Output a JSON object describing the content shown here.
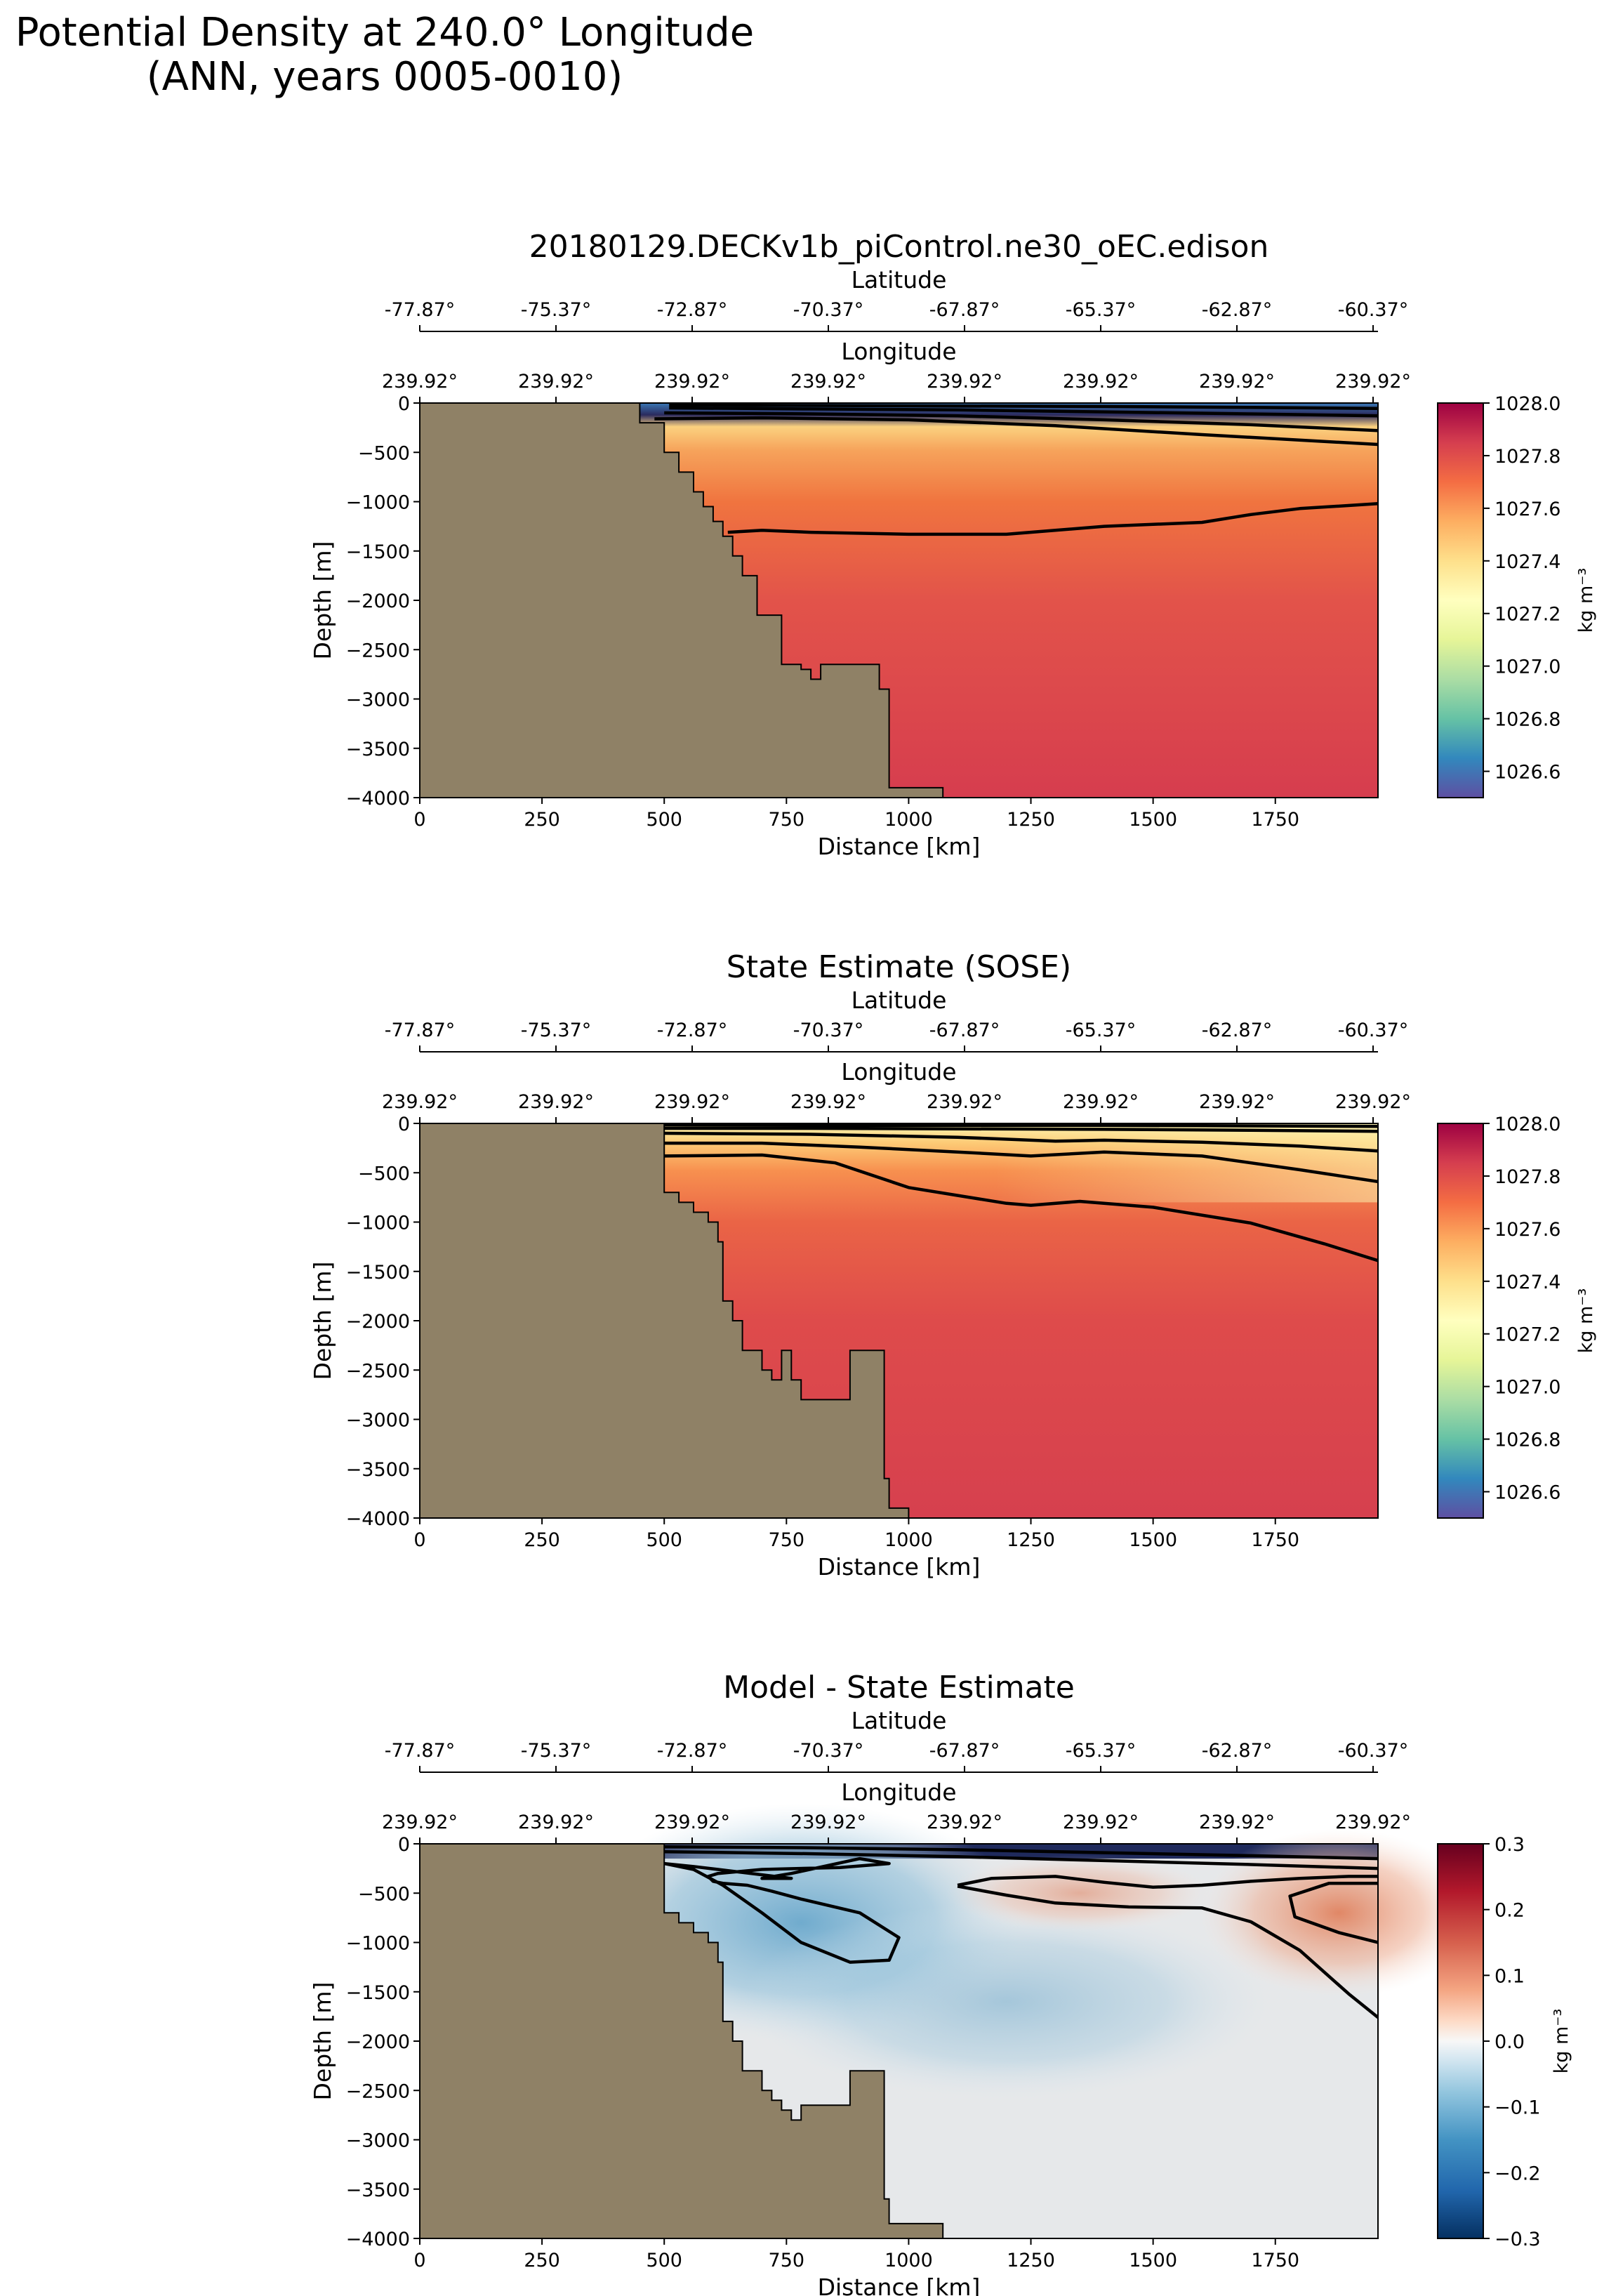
{
  "suptitle": [
    "Potential Density at 240.0° Longitude",
    "(ANN, years 0005-0010)"
  ],
  "colors": {
    "land": "#8f8166",
    "contour": "#000000",
    "density_colormap": "Spectral_r",
    "difference_colormap": "RdBu_r"
  },
  "chart_data": [
    {
      "type": "heatmap",
      "title": "20180129.DECKv1b_piControl.ne30_oEC.edison",
      "xlabel": "Distance [km]",
      "ylabel": "Depth [m]",
      "top_axis_1_label": "Latitude",
      "top_axis_1_ticks": [
        "-77.87°",
        "-75.37°",
        "-72.87°",
        "-70.37°",
        "-67.87°",
        "-65.37°",
        "-62.87°",
        "-60.37°"
      ],
      "top_axis_2_label": "Longitude",
      "top_axis_2_ticks": [
        "239.92°",
        "239.92°",
        "239.92°",
        "239.92°",
        "239.92°",
        "239.92°",
        "239.92°",
        "239.92°"
      ],
      "xlim": [
        0,
        1960
      ],
      "ylim": [
        -4000,
        0
      ],
      "xticks": [
        0,
        250,
        500,
        750,
        1000,
        1250,
        1500,
        1750
      ],
      "yticks": [
        0,
        -500,
        -1000,
        -1500,
        -2000,
        -2500,
        -3000,
        -3500,
        -4000
      ],
      "colorbar": {
        "label": "kg m⁻³",
        "range": [
          1026.5,
          1028.0
        ],
        "ticks": [
          "1028.0",
          "1027.8",
          "1027.6",
          "1027.4",
          "1027.2",
          "1027.0",
          "1026.8",
          "1026.6"
        ]
      },
      "bathymetry": {
        "distance_km": [
          450,
          450,
          500,
          500,
          530,
          530,
          560,
          560,
          580,
          580,
          600,
          600,
          620,
          620,
          640,
          640,
          660,
          660,
          690,
          690,
          740,
          740,
          780,
          780,
          800,
          800,
          820,
          820,
          830,
          830,
          940,
          940,
          960,
          960,
          1070,
          1070
        ],
        "depth_m": [
          0,
          -200,
          -200,
          -500,
          -500,
          -700,
          -700,
          -900,
          -900,
          -1050,
          -1050,
          -1200,
          -1200,
          -1350,
          -1350,
          -1550,
          -1550,
          -1750,
          -1750,
          -2150,
          -2150,
          -2650,
          -2650,
          -2700,
          -2700,
          -2800,
          -2800,
          -2650,
          -2650,
          -2650,
          -2650,
          -2900,
          -2900,
          -3900,
          -3900,
          -4000
        ]
      },
      "contours": [
        {
          "distance_km": [
            510,
            800,
            1100,
            1400,
            1700,
            1960
          ],
          "depth_m": [
            -20,
            -25,
            -30,
            -35,
            -45,
            -55
          ]
        },
        {
          "distance_km": [
            510,
            800,
            1100,
            1400,
            1700,
            1960
          ],
          "depth_m": [
            -50,
            -60,
            -70,
            -90,
            -110,
            -130
          ]
        },
        {
          "distance_km": [
            500,
            800,
            1100,
            1400,
            1700,
            1960
          ],
          "depth_m": [
            -100,
            -110,
            -130,
            -170,
            -220,
            -280
          ]
        },
        {
          "distance_km": [
            480,
            700,
            1000,
            1300,
            1600,
            1960
          ],
          "depth_m": [
            -160,
            -150,
            -170,
            -230,
            -320,
            -420
          ]
        },
        {
          "distance_km": [
            630,
            700,
            800,
            1000,
            1200,
            1400,
            1600,
            1700,
            1800,
            1960
          ],
          "depth_m": [
            -1310,
            -1290,
            -1310,
            -1330,
            -1330,
            -1250,
            -1210,
            -1130,
            -1070,
            -1020
          ]
        }
      ]
    },
    {
      "type": "heatmap",
      "title": "State Estimate (SOSE)",
      "xlabel": "Distance [km]",
      "ylabel": "Depth [m]",
      "top_axis_1_label": "Latitude",
      "top_axis_1_ticks": [
        "-77.87°",
        "-75.37°",
        "-72.87°",
        "-70.37°",
        "-67.87°",
        "-65.37°",
        "-62.87°",
        "-60.37°"
      ],
      "top_axis_2_label": "Longitude",
      "top_axis_2_ticks": [
        "239.92°",
        "239.92°",
        "239.92°",
        "239.92°",
        "239.92°",
        "239.92°",
        "239.92°",
        "239.92°"
      ],
      "xlim": [
        0,
        1960
      ],
      "ylim": [
        -4000,
        0
      ],
      "xticks": [
        0,
        250,
        500,
        750,
        1000,
        1250,
        1500,
        1750
      ],
      "yticks": [
        0,
        -500,
        -1000,
        -1500,
        -2000,
        -2500,
        -3000,
        -3500,
        -4000
      ],
      "colorbar": {
        "label": "kg m⁻³",
        "range": [
          1026.5,
          1028.0
        ],
        "ticks": [
          "1028.0",
          "1027.8",
          "1027.6",
          "1027.4",
          "1027.2",
          "1027.0",
          "1026.8",
          "1026.6"
        ]
      },
      "bathymetry": {
        "distance_km": [
          500,
          500,
          530,
          530,
          560,
          560,
          590,
          590,
          610,
          610,
          620,
          620,
          640,
          640,
          660,
          660,
          700,
          700,
          720,
          720,
          740,
          740,
          760,
          760,
          780,
          780,
          790,
          790,
          880,
          880,
          890,
          890,
          950,
          950,
          960,
          960,
          1000,
          1000
        ],
        "depth_m": [
          0,
          -700,
          -700,
          -800,
          -800,
          -900,
          -900,
          -1000,
          -1000,
          -1200,
          -1200,
          -1800,
          -1800,
          -2000,
          -2000,
          -2300,
          -2300,
          -2500,
          -2500,
          -2600,
          -2600,
          -2300,
          -2300,
          -2600,
          -2600,
          -2800,
          -2800,
          -2800,
          -2800,
          -2300,
          -2300,
          -2300,
          -2300,
          -3600,
          -3600,
          -3900,
          -3900,
          -4000
        ]
      },
      "contours": [
        {
          "distance_km": [
            500,
            800,
            1100,
            1400,
            1700,
            1960
          ],
          "depth_m": [
            -15,
            -20,
            -20,
            -20,
            -25,
            -30
          ]
        },
        {
          "distance_km": [
            500,
            800,
            1100,
            1400,
            1700,
            1960
          ],
          "depth_m": [
            -50,
            -50,
            -55,
            -60,
            -70,
            -80
          ]
        },
        {
          "distance_km": [
            500,
            800,
            1100,
            1300,
            1400,
            1600,
            1800,
            1960
          ],
          "depth_m": [
            -100,
            -110,
            -140,
            -180,
            -170,
            -190,
            -230,
            -280
          ]
        },
        {
          "distance_km": [
            500,
            700,
            900,
            1100,
            1250,
            1400,
            1600,
            1800,
            1960
          ],
          "depth_m": [
            -200,
            -200,
            -240,
            -290,
            -330,
            -290,
            -330,
            -470,
            -590
          ]
        },
        {
          "distance_km": [
            500,
            700,
            850,
            1000,
            1200,
            1250,
            1350,
            1500,
            1700,
            1850,
            1960
          ],
          "depth_m": [
            -330,
            -320,
            -400,
            -650,
            -810,
            -830,
            -790,
            -850,
            -1010,
            -1220,
            -1390
          ]
        }
      ]
    },
    {
      "type": "heatmap",
      "title": "Model - State Estimate",
      "xlabel": "Distance [km]",
      "ylabel": "Depth [m]",
      "top_axis_1_label": "Latitude",
      "top_axis_1_ticks": [
        "-77.87°",
        "-75.37°",
        "-72.87°",
        "-70.37°",
        "-67.87°",
        "-65.37°",
        "-62.87°",
        "-60.37°"
      ],
      "top_axis_2_label": "Longitude",
      "top_axis_2_ticks": [
        "239.92°",
        "239.92°",
        "239.92°",
        "239.92°",
        "239.92°",
        "239.92°",
        "239.92°",
        "239.92°"
      ],
      "xlim": [
        0,
        1960
      ],
      "ylim": [
        -4000,
        0
      ],
      "xticks": [
        0,
        250,
        500,
        750,
        1000,
        1250,
        1500,
        1750
      ],
      "yticks": [
        0,
        -500,
        -1000,
        -1500,
        -2000,
        -2500,
        -3000,
        -3500,
        -4000
      ],
      "colorbar": {
        "label": "kg m⁻³",
        "range": [
          -0.3,
          0.3
        ],
        "ticks": [
          "0.3",
          "0.2",
          "0.1",
          "0.0",
          "−0.1",
          "−0.2",
          "−0.3"
        ]
      },
      "bathymetry": {
        "distance_km": [
          500,
          500,
          530,
          530,
          560,
          560,
          590,
          590,
          610,
          610,
          620,
          620,
          640,
          640,
          660,
          660,
          700,
          700,
          720,
          720,
          740,
          740,
          760,
          760,
          780,
          780,
          790,
          790,
          880,
          880,
          890,
          890,
          950,
          950,
          960,
          960,
          1070,
          1070
        ],
        "depth_m": [
          0,
          -700,
          -700,
          -800,
          -800,
          -900,
          -900,
          -1000,
          -1000,
          -1200,
          -1200,
          -1800,
          -1800,
          -2000,
          -2000,
          -2300,
          -2300,
          -2500,
          -2500,
          -2600,
          -2600,
          -2700,
          -2700,
          -2800,
          -2800,
          -2650,
          -2650,
          -2650,
          -2650,
          -2300,
          -2300,
          -2300,
          -2300,
          -3600,
          -3600,
          -3850,
          -3850,
          -4000
        ]
      },
      "contours": [
        {
          "distance_km": [
            500,
            800,
            1100,
            1400,
            1700,
            1960
          ],
          "depth_m": [
            -30,
            -40,
            -60,
            -90,
            -120,
            -150
          ]
        },
        {
          "distance_km": [
            500,
            800,
            1100,
            1400,
            1700,
            1960
          ],
          "depth_m": [
            -80,
            -100,
            -130,
            -170,
            -210,
            -250
          ]
        },
        {
          "distance_km": [
            500,
            560,
            620,
            700,
            780,
            880,
            960,
            980,
            900,
            780,
            720,
            670,
            620,
            600,
            590,
            610,
            700,
            860,
            960,
            900,
            760,
            700,
            760,
            560,
            500
          ],
          "depth_m": [
            -200,
            -260,
            -420,
            -700,
            -1000,
            -1200,
            -1180,
            -950,
            -700,
            -560,
            -480,
            -420,
            -400,
            -380,
            -330,
            -300,
            -260,
            -240,
            -200,
            -150,
            -300,
            -350,
            -350,
            -230,
            -200
          ]
        },
        {
          "distance_km": [
            1100,
            1170,
            1300,
            1400,
            1500,
            1600,
            1700,
            1800,
            1900,
            1960
          ],
          "depth_m": [
            -420,
            -350,
            -330,
            -390,
            -440,
            -420,
            -380,
            -350,
            -330,
            -330
          ]
        },
        {
          "distance_km": [
            1100,
            1200,
            1300,
            1450,
            1600,
            1700,
            1800,
            1900,
            1960
          ],
          "depth_m": [
            -430,
            -520,
            -600,
            -640,
            -650,
            -790,
            -1080,
            -1520,
            -1760
          ]
        },
        {
          "distance_km": [
            1960,
            1860,
            1780,
            1790,
            1880,
            1960
          ],
          "depth_m": [
            -400,
            -400,
            -530,
            -740,
            -900,
            -1000
          ]
        }
      ]
    }
  ]
}
